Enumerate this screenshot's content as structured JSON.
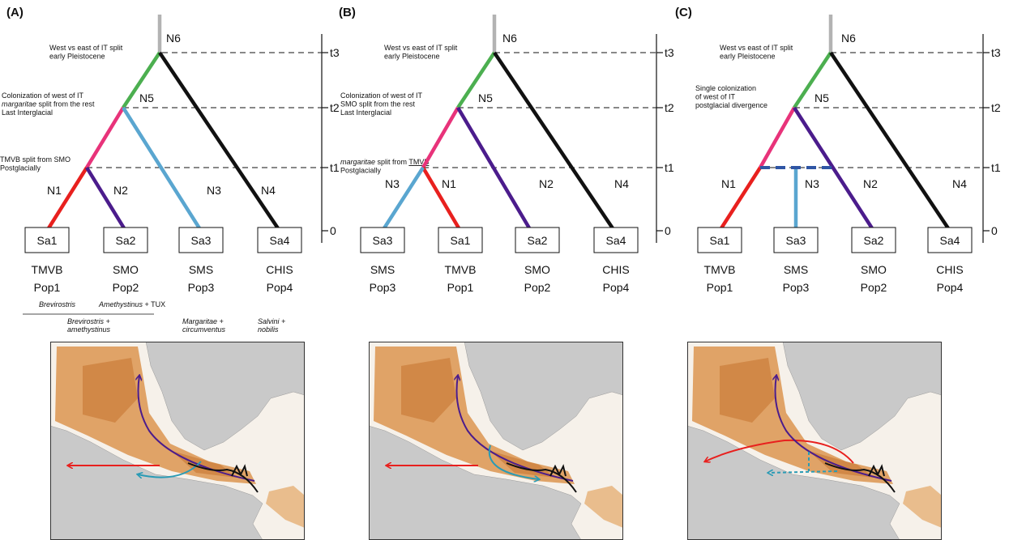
{
  "panels": [
    {
      "label": "(A)",
      "notes": [
        [
          [
            "West vs east of IT split"
          ],
          [
            "early Pleistocene"
          ]
        ],
        [
          [
            "Colonization of west of IT"
          ],
          [
            {
              "text": "margaritae",
              "italic": true
            },
            " split from the rest"
          ],
          [
            "Last Interglacial"
          ]
        ],
        [
          [
            "TMVB split from SMO"
          ],
          [
            "Postglacially"
          ]
        ]
      ],
      "node_labels": [
        "N6",
        "N5"
      ],
      "branch_labels": [
        "N1",
        "N2",
        "N3",
        "N4"
      ],
      "times": [
        "t3",
        "t2",
        "t1",
        "0"
      ],
      "samples": [
        {
          "box": "Sa1",
          "region": "TMVB",
          "pop": "Pop1"
        },
        {
          "box": "Sa2",
          "region": "SMO",
          "pop": "Pop2"
        },
        {
          "box": "Sa3",
          "region": "SMS",
          "pop": "Pop3"
        },
        {
          "box": "Sa4",
          "region": "CHIS",
          "pop": "Pop4"
        }
      ]
    },
    {
      "label": "(B)",
      "notes": [
        [
          [
            "West vs east of IT split"
          ],
          [
            "early Pleistocene"
          ]
        ],
        [
          [
            "Colonization of west of IT"
          ],
          [
            "SMO split from the rest"
          ],
          [
            "Last Interglacial"
          ]
        ],
        [
          [
            {
              "text": "margaritae",
              "italic": true
            },
            " split from ",
            {
              "text": "TMVB",
              "underline": true
            }
          ],
          [
            "Postglacially"
          ]
        ]
      ],
      "node_labels": [
        "N6",
        "N5"
      ],
      "branch_labels": [
        "N3",
        "N1",
        "N2",
        "N4"
      ],
      "times": [
        "t3",
        "t2",
        "t1",
        "0"
      ],
      "samples": [
        {
          "box": "Sa3",
          "region": "SMS",
          "pop": "Pop3"
        },
        {
          "box": "Sa1",
          "region": "TMVB",
          "pop": "Pop1"
        },
        {
          "box": "Sa2",
          "region": "SMO",
          "pop": "Pop2"
        },
        {
          "box": "Sa4",
          "region": "CHIS",
          "pop": "Pop4"
        }
      ]
    },
    {
      "label": "(C)",
      "notes": [
        [
          [
            "West vs east of IT split"
          ],
          [
            "early Pleistocene"
          ]
        ],
        [
          [
            "Single colonization"
          ],
          [
            "of west of IT"
          ],
          [
            "postglacial divergence"
          ]
        ]
      ],
      "node_labels": [
        "N6",
        "N5"
      ],
      "branch_labels": [
        "N1",
        "N3",
        "N2",
        "N4"
      ],
      "times": [
        "t3",
        "t2",
        "t1",
        "0"
      ],
      "samples": [
        {
          "box": "Sa1",
          "region": "TMVB",
          "pop": "Pop1"
        },
        {
          "box": "Sa3",
          "region": "SMS",
          "pop": "Pop3"
        },
        {
          "box": "Sa2",
          "region": "SMO",
          "pop": "Pop2"
        },
        {
          "box": "Sa4",
          "region": "CHIS",
          "pop": "Pop4"
        }
      ]
    }
  ],
  "taxa": [
    [
      [
        {
          "text": "Brevirostris",
          "italic": true
        }
      ]
    ],
    [
      [
        {
          "text": "Amethystinus",
          "italic": true
        },
        " + TUX"
      ]
    ],
    [
      [
        {
          "text": "Brevirostris +",
          "italic": true
        }
      ],
      [
        {
          "text": "amethystinus",
          "italic": true
        }
      ]
    ],
    [
      [
        {
          "text": "Margaritae +",
          "italic": true
        }
      ],
      [
        {
          "text": "circumventus",
          "italic": true
        }
      ]
    ],
    [
      [
        {
          "text": "Salvini +",
          "italic": true
        }
      ],
      [
        {
          "text": "nobilis",
          "italic": true
        }
      ]
    ]
  ]
}
